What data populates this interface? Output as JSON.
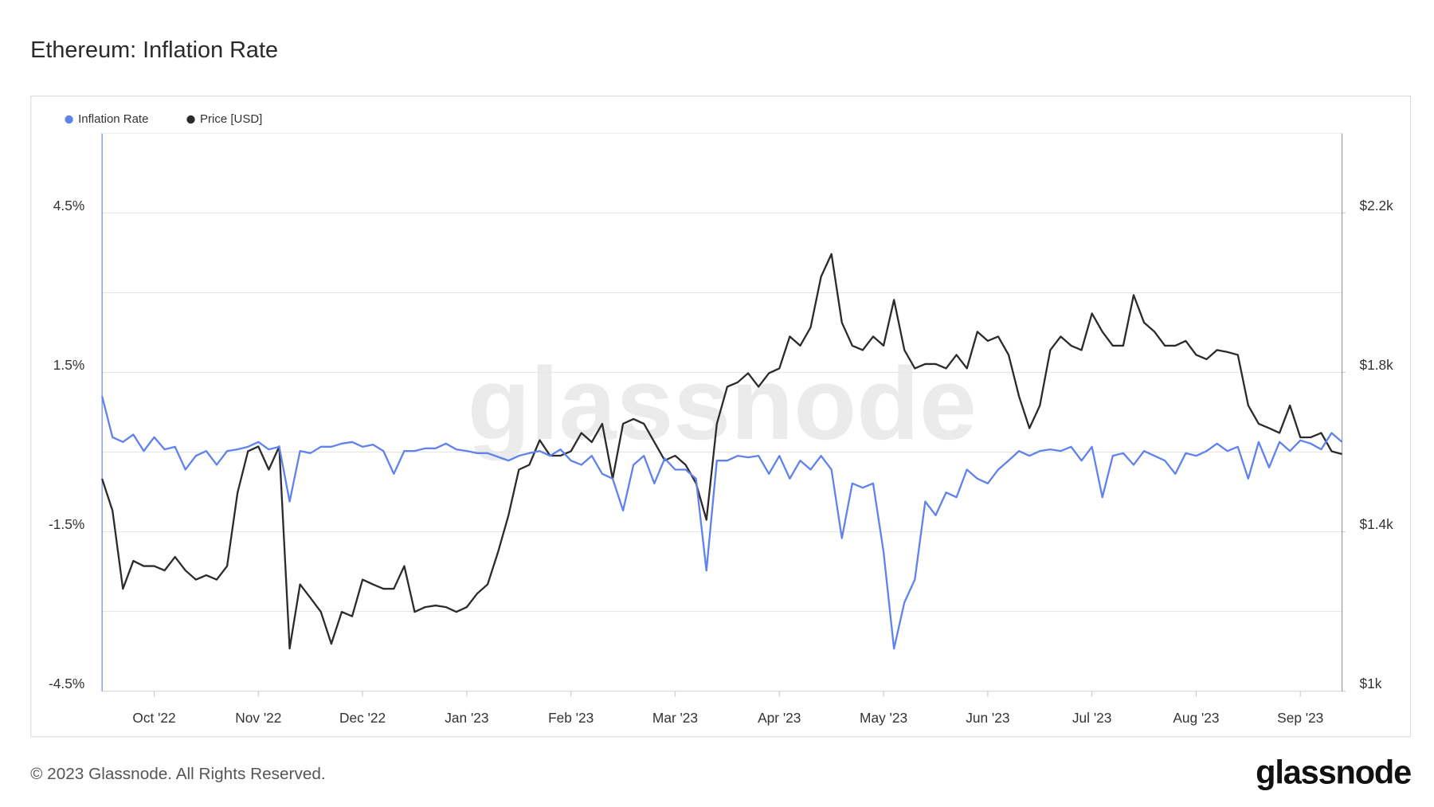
{
  "chart_data": {
    "type": "line",
    "title": "Ethereum: Inflation Rate",
    "watermark": "glassnode",
    "categories": [
      null,
      null,
      null,
      null,
      null,
      "Oct '22",
      null,
      null,
      null,
      null,
      null,
      null,
      null,
      null,
      null,
      "Nov '22",
      null,
      null,
      null,
      null,
      null,
      null,
      null,
      null,
      null,
      "Dec '22",
      null,
      null,
      null,
      null,
      null,
      null,
      null,
      null,
      null,
      "Jan '23",
      null,
      null,
      null,
      null,
      null,
      null,
      null,
      null,
      null,
      "Feb '23",
      null,
      null,
      null,
      null,
      null,
      null,
      null,
      null,
      null,
      "Mar '23",
      null,
      null,
      null,
      null,
      null,
      null,
      null,
      null,
      null,
      "Apr '23",
      null,
      null,
      null,
      null,
      null,
      null,
      null,
      null,
      null,
      "May '23",
      null,
      null,
      null,
      null,
      null,
      null,
      null,
      null,
      null,
      "Jun '23",
      null,
      null,
      null,
      null,
      null,
      null,
      null,
      null,
      null,
      "Jul '23",
      null,
      null,
      null,
      null,
      null,
      null,
      null,
      null,
      null,
      "Aug '23",
      null,
      null,
      null,
      null,
      null,
      null,
      null,
      null,
      null,
      "Sep '23",
      null,
      null,
      null,
      null
    ],
    "series": [
      {
        "name": "Inflation Rate",
        "color": "#5f82ec",
        "axis": "y",
        "values": [
          1.05,
          0.28,
          0.19,
          0.33,
          0.02,
          0.28,
          0.05,
          0.1,
          -0.33,
          -0.07,
          0.02,
          -0.24,
          0.02,
          0.05,
          0.1,
          0.19,
          0.05,
          0.1,
          -0.93,
          0.02,
          -0.02,
          0.1,
          0.1,
          0.16,
          0.19,
          0.1,
          0.14,
          0.02,
          -0.41,
          0.02,
          0.02,
          0.07,
          0.07,
          0.16,
          0.05,
          0.02,
          -0.02,
          -0.02,
          -0.09,
          -0.16,
          -0.07,
          -0.02,
          0.02,
          -0.07,
          0.05,
          -0.16,
          -0.24,
          -0.07,
          -0.41,
          -0.5,
          -1.1,
          -0.24,
          -0.07,
          -0.59,
          -0.12,
          -0.33,
          -0.33,
          -0.5,
          -2.23,
          -0.16,
          -0.16,
          -0.07,
          -0.1,
          -0.07,
          -0.41,
          -0.07,
          -0.5,
          -0.16,
          -0.33,
          -0.07,
          -0.33,
          -1.62,
          -0.59,
          -0.67,
          -0.59,
          -1.88,
          -3.7,
          -2.83,
          -2.4,
          -0.93,
          -1.19,
          -0.76,
          -0.85,
          -0.33,
          -0.5,
          -0.59,
          -0.33,
          -0.16,
          0.02,
          -0.07,
          0.02,
          0.05,
          0.02,
          0.1,
          -0.16,
          0.1,
          -0.85,
          -0.07,
          -0.02,
          -0.24,
          0.02,
          -0.07,
          -0.16,
          -0.41,
          -0.02,
          -0.07,
          0.02,
          0.16,
          0.02,
          0.1,
          -0.5,
          0.19,
          -0.29,
          0.19,
          0.02,
          0.22,
          0.16,
          0.05,
          0.36,
          0.19
        ]
      },
      {
        "name": "Price [USD]",
        "color": "#2b2b2b",
        "axis": "y2",
        "values": [
          1533,
          1453,
          1257,
          1327,
          1314,
          1314,
          1303,
          1337,
          1303,
          1280,
          1291,
          1280,
          1314,
          1498,
          1602,
          1614,
          1556,
          1614,
          1107,
          1268,
          1234,
          1199,
          1119,
          1199,
          1188,
          1280,
          1268,
          1257,
          1257,
          1314,
          1199,
          1211,
          1215,
          1211,
          1199,
          1211,
          1245,
          1268,
          1349,
          1441,
          1556,
          1568,
          1630,
          1591,
          1591,
          1602,
          1648,
          1625,
          1671,
          1533,
          1671,
          1683,
          1671,
          1625,
          1579,
          1591,
          1568,
          1522,
          1430,
          1671,
          1764,
          1775,
          1798,
          1764,
          1798,
          1810,
          1890,
          1867,
          1913,
          2040,
          2097,
          1925,
          1867,
          1856,
          1890,
          1867,
          1982,
          1856,
          1810,
          1821,
          1821,
          1810,
          1844,
          1810,
          1902,
          1879,
          1890,
          1844,
          1740,
          1660,
          1717,
          1856,
          1890,
          1867,
          1856,
          1948,
          1902,
          1867,
          1867,
          1994,
          1925,
          1902,
          1867,
          1867,
          1879,
          1844,
          1833,
          1856,
          1851,
          1844,
          1717,
          1671,
          1660,
          1648,
          1717,
          1637,
          1637,
          1648,
          1602,
          1595
        ]
      }
    ],
    "ylim": [
      -4.5,
      6
    ],
    "yticks": [
      {
        "value": 4.5,
        "label": "4.5%"
      },
      {
        "value": 1.5,
        "label": "1.5%"
      },
      {
        "value": -1.5,
        "label": "-1.5%"
      },
      {
        "value": -4.5,
        "label": "-4.5%"
      }
    ],
    "y_minor_ticks": [
      3,
      0,
      -3
    ],
    "y2lim": [
      1000,
      2400
    ],
    "y2ticks": [
      {
        "value": 2200,
        "label": "$2.2k"
      },
      {
        "value": 1800,
        "label": "$1.8k"
      },
      {
        "value": 1400,
        "label": "$1.4k"
      },
      {
        "value": 1000,
        "label": "$1k"
      }
    ],
    "grid": true,
    "legend": "top-left"
  },
  "footer": {
    "copyright": "© 2023 Glassnode. All Rights Reserved.",
    "logo": "glassnode"
  }
}
